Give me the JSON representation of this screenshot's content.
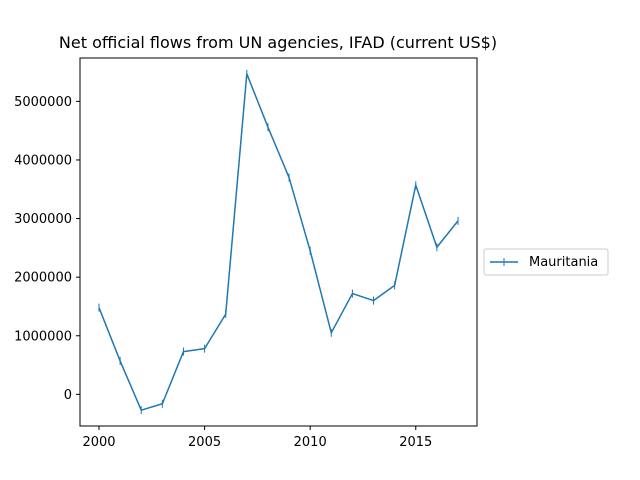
{
  "chart_data": {
    "type": "line",
    "title": "Net official flows from UN agencies, IFAD (current US$)",
    "xlabel": "",
    "ylabel": "",
    "x": [
      2000,
      2001,
      2002,
      2003,
      2004,
      2005,
      2006,
      2007,
      2008,
      2009,
      2010,
      2011,
      2012,
      2013,
      2014,
      2015,
      2016,
      2017
    ],
    "series": [
      {
        "name": "Mauritania",
        "color": "#1f77b4",
        "values": [
          1480000,
          570000,
          -270000,
          -160000,
          730000,
          780000,
          1370000,
          5470000,
          4560000,
          3700000,
          2450000,
          1050000,
          1720000,
          1600000,
          1860000,
          3570000,
          2510000,
          2960000
        ]
      }
    ],
    "xlim": [
      1999.1,
      2017.9
    ],
    "ylim": [
      -540000,
      5740000
    ],
    "xticks": [
      2000,
      2005,
      2010,
      2015
    ],
    "yticks": [
      0,
      1000000,
      2000000,
      3000000,
      4000000,
      5000000
    ],
    "xtick_labels": [
      "2000",
      "2005",
      "2010",
      "2015"
    ],
    "ytick_labels": [
      "0",
      "1000000",
      "2000000",
      "3000000",
      "4000000",
      "5000000"
    ],
    "legend": {
      "placement": "center-right outside",
      "entries": [
        "Mauritania"
      ]
    },
    "grid": false,
    "marker": "|"
  }
}
